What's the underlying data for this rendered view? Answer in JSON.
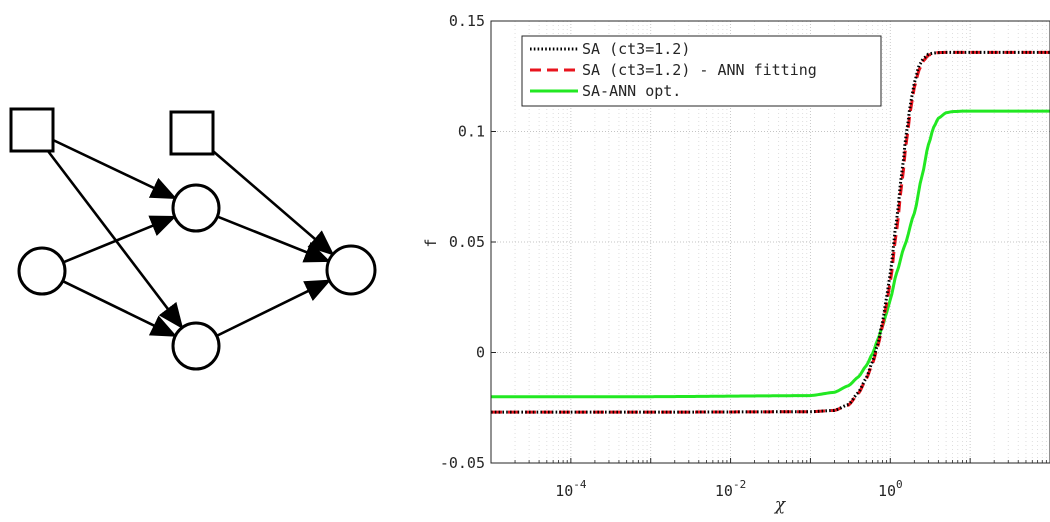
{
  "chart_data": [
    {
      "type": "diagram",
      "title": "",
      "nodes": [
        {
          "id": "in1",
          "shape": "square"
        },
        {
          "id": "in2",
          "shape": "circle"
        },
        {
          "id": "bias",
          "shape": "square"
        },
        {
          "id": "h1",
          "shape": "circle"
        },
        {
          "id": "h2",
          "shape": "circle"
        },
        {
          "id": "out",
          "shape": "circle"
        }
      ],
      "edges": [
        [
          "in1",
          "h1"
        ],
        [
          "in1",
          "h2"
        ],
        [
          "in2",
          "h1"
        ],
        [
          "in2",
          "h2"
        ],
        [
          "bias",
          "out"
        ],
        [
          "h1",
          "out"
        ],
        [
          "h2",
          "out"
        ]
      ]
    },
    {
      "type": "line",
      "title": "",
      "xlabel": "χ",
      "ylabel": "f",
      "xscale": "log",
      "xlim": [
        1e-05,
        100
      ],
      "ylim": [
        -0.05,
        0.15
      ],
      "yticks": [
        {
          "value": -0.05,
          "label": "-0.05"
        },
        {
          "value": 0,
          "label": "0"
        },
        {
          "value": 0.05,
          "label": "0.05"
        },
        {
          "value": 0.1,
          "label": "0.1"
        },
        {
          "value": 0.15,
          "label": "0.15"
        }
      ],
      "xticks": [
        {
          "value": 0.0001,
          "base": "10",
          "exp": "-4"
        },
        {
          "value": 0.01,
          "base": "10",
          "exp": "-2"
        },
        {
          "value": 1,
          "base": "10",
          "exp": "0"
        }
      ],
      "grid": true,
      "legend": "top-left",
      "series": [
        {
          "name": "SA (ct3=1.2)",
          "style": "dotted",
          "color": "#000000",
          "x": [
            1e-05,
            0.001,
            0.1,
            0.2,
            0.3,
            0.4,
            0.5,
            0.6,
            0.7,
            0.8,
            0.9,
            1.0,
            1.2,
            1.4,
            1.6,
            1.8,
            2.0,
            2.3,
            2.6,
            3.0,
            3.5,
            4.0,
            5.0,
            7.0,
            10,
            30,
            100
          ],
          "y": [
            -0.027,
            -0.027,
            -0.0268,
            -0.0262,
            -0.0235,
            -0.018,
            -0.0115,
            -0.004,
            0.004,
            0.014,
            0.025,
            0.036,
            0.06,
            0.082,
            0.1,
            0.113,
            0.122,
            0.13,
            0.133,
            0.135,
            0.1355,
            0.1357,
            0.1358,
            0.1358,
            0.1358,
            0.1358,
            0.1358
          ]
        },
        {
          "name": "SA (ct3=1.2) - ANN fitting",
          "style": "dashed",
          "color": "#e8141e",
          "x": [
            1e-05,
            0.001,
            0.1,
            0.2,
            0.3,
            0.4,
            0.5,
            0.6,
            0.7,
            0.8,
            0.9,
            1.0,
            1.2,
            1.4,
            1.6,
            1.8,
            2.0,
            2.3,
            2.6,
            3.0,
            3.5,
            4.0,
            5.0,
            7.0,
            10,
            30,
            100
          ],
          "y": [
            -0.027,
            -0.027,
            -0.0268,
            -0.0262,
            -0.0238,
            -0.0185,
            -0.012,
            -0.005,
            0.003,
            0.012,
            0.022,
            0.032,
            0.055,
            0.077,
            0.096,
            0.11,
            0.12,
            0.128,
            0.132,
            0.1345,
            0.1354,
            0.1357,
            0.1358,
            0.1358,
            0.1358,
            0.1358,
            0.1358
          ]
        },
        {
          "name": "SA-ANN opt.",
          "style": "solid",
          "color": "#22e822",
          "x": [
            1e-05,
            0.001,
            0.1,
            0.2,
            0.3,
            0.4,
            0.5,
            0.6,
            0.7,
            0.8,
            0.9,
            1.0,
            1.2,
            1.5,
            2.0,
            2.5,
            3.0,
            3.5,
            4.0,
            5.0,
            6.0,
            8.0,
            10,
            30,
            100
          ],
          "y": [
            -0.02,
            -0.02,
            -0.0195,
            -0.018,
            -0.015,
            -0.011,
            -0.006,
            -0.0005,
            0.006,
            0.012,
            0.018,
            0.024,
            0.036,
            0.048,
            0.063,
            0.08,
            0.094,
            0.102,
            0.106,
            0.1085,
            0.109,
            0.1092,
            0.1092,
            0.1092,
            0.1092
          ]
        }
      ]
    }
  ]
}
